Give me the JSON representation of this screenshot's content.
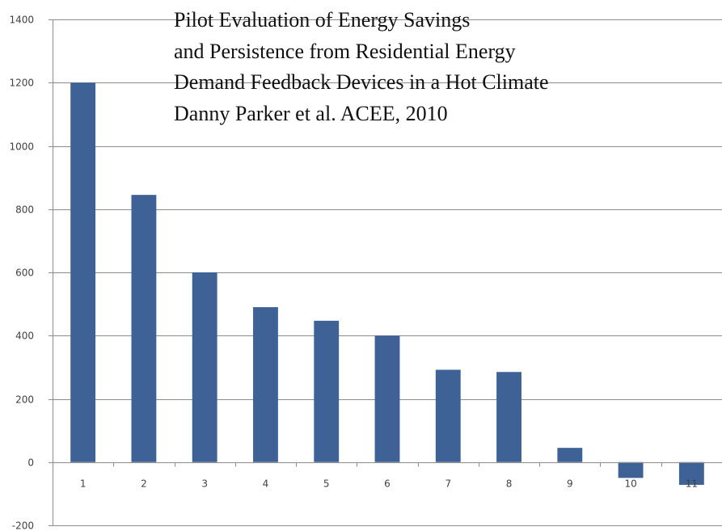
{
  "chart_data": {
    "type": "bar",
    "title_lines": [
      "Pilot Evaluation of Energy Savings",
      "and Persistence from Residential Energy",
      "Demand Feedback Devices in a Hot Climate",
      "Danny Parker et al. ACEE, 2010"
    ],
    "categories": [
      "1",
      "2",
      "3",
      "4",
      "5",
      "6",
      "7",
      "8",
      "9",
      "10",
      "11"
    ],
    "values": [
      1200,
      845,
      600,
      490,
      447,
      400,
      292,
      285,
      45,
      -50,
      -72
    ],
    "y_ticks": [
      "1400",
      "1200",
      "1000",
      "800",
      "600",
      "400",
      "200",
      "0",
      "-200"
    ],
    "ylim": [
      -200,
      1400
    ],
    "grid": true,
    "legend": "none",
    "bar_color": "#3F6296",
    "grid_color": "#8C8C8C"
  }
}
